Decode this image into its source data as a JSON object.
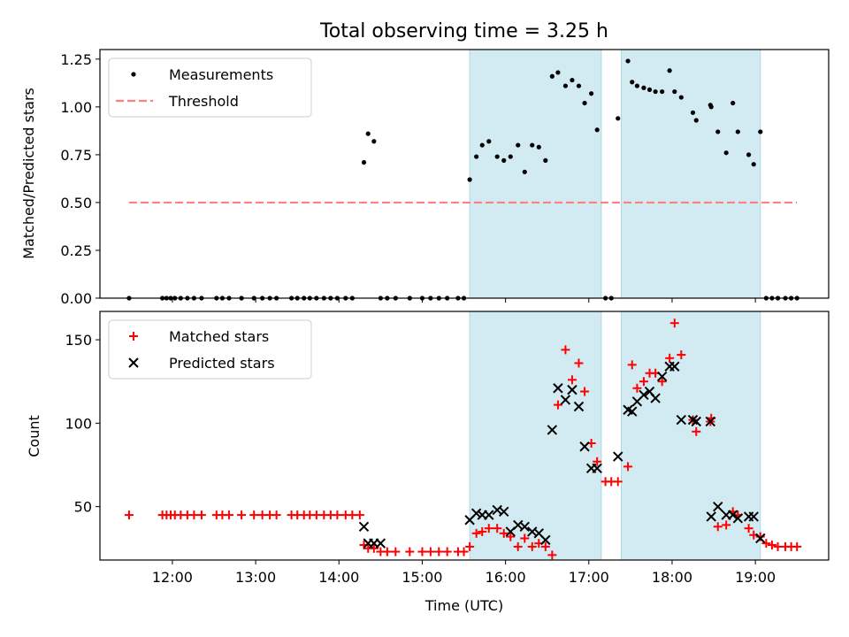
{
  "chart_data": [
    {
      "type": "scatter",
      "title": "Total observing time = 3.25 h",
      "ylabel": "Matched/Predicted stars",
      "xlabel": "",
      "xlim": [
        11.13,
        19.88
      ],
      "ylim": [
        0,
        1.3
      ],
      "yticks": [
        0.0,
        0.25,
        0.5,
        0.75,
        1.0,
        1.25
      ],
      "ytick_labels": [
        "0.00",
        "0.25",
        "0.50",
        "0.75",
        "1.00",
        "1.25"
      ],
      "shaded_spans": [
        [
          15.57,
          17.15
        ],
        [
          17.39,
          19.06
        ]
      ],
      "shade_color": "#add8e6",
      "legend_position": "upper-left",
      "series": [
        {
          "name": "Measurements",
          "marker": "dot",
          "color": "#000000",
          "x": [
            11.48,
            11.88,
            11.93,
            11.98,
            12.03,
            12.1,
            12.18,
            12.26,
            12.35,
            12.53,
            12.6,
            12.68,
            12.83,
            12.98,
            13.08,
            13.17,
            13.25,
            13.43,
            13.5,
            13.58,
            13.65,
            13.73,
            13.82,
            13.9,
            13.98,
            14.08,
            14.16,
            14.3,
            14.35,
            14.42,
            14.5,
            14.58,
            14.68,
            14.85,
            15.0,
            15.1,
            15.2,
            15.3,
            15.43,
            15.5,
            15.57,
            15.65,
            15.72,
            15.8,
            15.9,
            15.98,
            16.06,
            16.15,
            16.23,
            16.32,
            16.4,
            16.48,
            16.56,
            16.63,
            16.72,
            16.8,
            16.88,
            16.95,
            17.03,
            17.1,
            17.2,
            17.27,
            17.35,
            17.47,
            17.52,
            17.58,
            17.66,
            17.73,
            17.8,
            17.88,
            17.97,
            18.03,
            18.11,
            18.25,
            18.29,
            18.46,
            18.47,
            18.55,
            18.65,
            18.73,
            18.79,
            18.92,
            18.98,
            19.06,
            19.13,
            19.2,
            19.27,
            19.36,
            19.43,
            19.5
          ],
          "y": [
            0,
            0,
            0,
            0,
            0,
            0,
            0,
            0,
            0,
            0,
            0,
            0,
            0,
            0,
            0,
            0,
            0,
            0,
            0,
            0,
            0,
            0,
            0,
            0,
            0,
            0,
            0,
            0.71,
            0.86,
            0.82,
            0,
            0,
            0,
            0,
            0,
            0,
            0,
            0,
            0,
            0,
            0.62,
            0.74,
            0.8,
            0.82,
            0.74,
            0.72,
            0.74,
            0.8,
            0.66,
            0.8,
            0.79,
            0.72,
            1.16,
            1.18,
            1.11,
            1.14,
            1.11,
            1.02,
            1.07,
            0.88,
            0,
            0,
            0.94,
            1.24,
            1.13,
            1.11,
            1.1,
            1.09,
            1.08,
            1.08,
            1.19,
            1.08,
            1.05,
            0.97,
            0.93,
            1.01,
            1.0,
            0.87,
            0.76,
            1.02,
            0.87,
            0.75,
            0.7,
            0.87,
            0,
            0,
            0,
            0,
            0,
            0
          ]
        },
        {
          "name": "Threshold",
          "style": "dashed",
          "color": "#ff7f7f",
          "x": [
            11.48,
            19.5
          ],
          "y": [
            0.5,
            0.5
          ]
        }
      ]
    },
    {
      "type": "scatter",
      "title": "",
      "ylabel": "Count",
      "xlabel": "Time (UTC)",
      "xlim": [
        11.13,
        19.88
      ],
      "ylim": [
        18,
        167
      ],
      "yticks": [
        50,
        100,
        150
      ],
      "ytick_labels": [
        "50",
        "100",
        "150"
      ],
      "xticks": [
        12,
        13,
        14,
        15,
        16,
        17,
        18,
        19
      ],
      "xtick_labels": [
        "12:00",
        "13:00",
        "14:00",
        "15:00",
        "16:00",
        "17:00",
        "18:00",
        "19:00"
      ],
      "shaded_spans": [
        [
          15.57,
          17.15
        ],
        [
          17.39,
          19.06
        ]
      ],
      "shade_color": "#add8e6",
      "legend_position": "upper-left",
      "series": [
        {
          "name": "Matched stars",
          "marker": "plus",
          "color": "#ff0000",
          "x": [
            11.48,
            11.88,
            11.93,
            11.98,
            12.03,
            12.1,
            12.18,
            12.26,
            12.35,
            12.53,
            12.6,
            12.68,
            12.83,
            12.98,
            13.08,
            13.17,
            13.25,
            13.43,
            13.5,
            13.58,
            13.65,
            13.73,
            13.82,
            13.9,
            13.98,
            14.08,
            14.16,
            14.25,
            14.3,
            14.35,
            14.42,
            14.5,
            14.58,
            14.68,
            14.85,
            15.0,
            15.1,
            15.2,
            15.3,
            15.43,
            15.5,
            15.57,
            15.65,
            15.72,
            15.8,
            15.9,
            15.98,
            16.06,
            16.15,
            16.23,
            16.32,
            16.4,
            16.48,
            16.56,
            16.63,
            16.72,
            16.8,
            16.88,
            16.95,
            17.03,
            17.1,
            17.2,
            17.27,
            17.35,
            17.47,
            17.52,
            17.58,
            17.66,
            17.73,
            17.8,
            17.88,
            17.97,
            18.03,
            18.11,
            18.25,
            18.29,
            18.46,
            18.47,
            18.55,
            18.65,
            18.73,
            18.79,
            18.92,
            18.98,
            19.06,
            19.13,
            19.2,
            19.27,
            19.36,
            19.43,
            19.5
          ],
          "y": [
            45,
            45,
            45,
            45,
            45,
            45,
            45,
            45,
            45,
            45,
            45,
            45,
            45,
            45,
            45,
            45,
            45,
            45,
            45,
            45,
            45,
            45,
            45,
            45,
            45,
            45,
            45,
            45,
            27,
            25,
            25,
            23,
            23,
            23,
            23,
            23,
            23,
            23,
            23,
            23,
            23,
            26,
            34,
            35,
            37,
            37,
            34,
            32,
            26,
            31,
            26,
            28,
            26,
            21,
            111,
            144,
            126,
            136,
            119,
            88,
            77,
            65,
            65,
            65,
            74,
            135,
            121,
            125,
            130,
            130,
            125,
            139,
            160,
            141,
            102,
            95,
            101,
            103,
            38,
            39,
            47,
            45,
            37,
            33,
            32,
            28,
            27,
            26,
            26,
            26,
            26
          ]
        },
        {
          "name": "Predicted stars",
          "marker": "x",
          "color": "#000000",
          "x": [
            14.3,
            14.35,
            14.42,
            14.5,
            15.57,
            15.65,
            15.72,
            15.8,
            15.9,
            15.98,
            16.06,
            16.15,
            16.23,
            16.32,
            16.4,
            16.48,
            16.56,
            16.63,
            16.72,
            16.8,
            16.88,
            16.95,
            17.03,
            17.1,
            17.35,
            17.47,
            17.52,
            17.58,
            17.66,
            17.73,
            17.8,
            17.88,
            17.97,
            18.03,
            18.11,
            18.25,
            18.29,
            18.46,
            18.47,
            18.55,
            18.65,
            18.73,
            18.79,
            18.92,
            18.98,
            19.06
          ],
          "y": [
            38,
            28,
            28,
            28,
            42,
            46,
            45,
            45,
            48,
            47,
            35,
            39,
            38,
            35,
            34,
            30,
            96,
            121,
            114,
            120,
            110,
            86,
            73,
            73,
            80,
            108,
            107,
            113,
            117,
            119,
            115,
            128,
            134,
            134,
            102,
            102,
            101,
            101,
            44,
            50,
            45,
            45,
            43,
            44,
            44,
            31
          ]
        }
      ]
    }
  ]
}
